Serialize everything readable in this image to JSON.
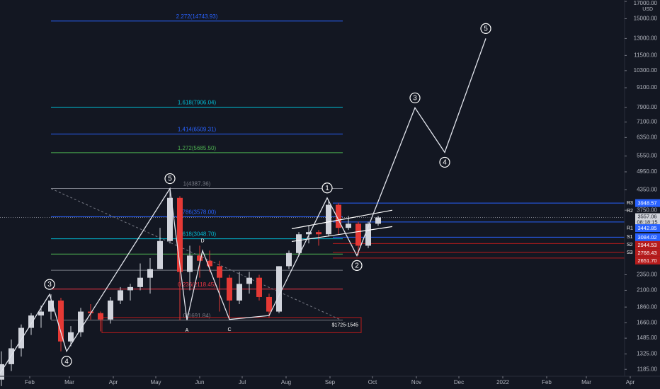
{
  "chart_data": {
    "type": "candlestick",
    "currency": "USD",
    "log_scale": true,
    "grid": false,
    "up_color": "#d1d4dc",
    "down_color": "#e53935",
    "xlim": [
      10,
      451
    ],
    "xticks": [
      {
        "value": 31,
        "label": "Feb"
      },
      {
        "value": 59,
        "label": "Mar"
      },
      {
        "value": 90,
        "label": "Apr"
      },
      {
        "value": 120,
        "label": "May"
      },
      {
        "value": 151,
        "label": "Jun"
      },
      {
        "value": 181,
        "label": "Jul"
      },
      {
        "value": 212,
        "label": "Aug"
      },
      {
        "value": 243,
        "label": "Sep"
      },
      {
        "value": 273,
        "label": "Oct"
      },
      {
        "value": 304,
        "label": "Nov"
      },
      {
        "value": 334,
        "label": "Dec"
      },
      {
        "value": 365,
        "label": "2022"
      },
      {
        "value": 396,
        "label": "Feb"
      },
      {
        "value": 424,
        "label": "Mar"
      },
      {
        "value": 455,
        "label": "Apr"
      }
    ],
    "ylim": [
      1127,
      17000
    ],
    "yticks": [
      {
        "value": 1185,
        "label": "1185.00"
      },
      {
        "value": 1325,
        "label": "1325.00"
      },
      {
        "value": 1485,
        "label": "1485.00"
      },
      {
        "value": 1660,
        "label": "1660.00"
      },
      {
        "value": 1860,
        "label": "1860.00"
      },
      {
        "value": 2100,
        "label": "2100.00"
      },
      {
        "value": 2350,
        "label": "2350.00"
      },
      {
        "value": 3750,
        "label": "3750.00"
      },
      {
        "value": 4350,
        "label": "4350.00"
      },
      {
        "value": 4950,
        "label": "4950.00"
      },
      {
        "value": 5550,
        "label": "5550.00"
      },
      {
        "value": 6350,
        "label": "6350.00"
      },
      {
        "value": 7100,
        "label": "7100.00"
      },
      {
        "value": 7900,
        "label": "7900.00"
      },
      {
        "value": 9100,
        "label": "9100.00"
      },
      {
        "value": 10300,
        "label": "10300.00"
      },
      {
        "value": 11500,
        "label": "11500.00"
      },
      {
        "value": 13000,
        "label": "13000.00"
      },
      {
        "value": 15000,
        "label": "15000.00"
      },
      {
        "value": 17000,
        "label": "17000.00"
      }
    ],
    "candles": {
      "x": [
        11,
        18,
        25,
        32,
        39,
        46,
        53,
        60,
        67,
        74,
        81,
        88,
        95,
        102,
        109,
        116,
        123,
        130,
        137,
        144,
        151,
        158,
        165,
        172,
        179,
        186,
        193,
        200,
        207,
        214,
        221,
        228,
        235,
        242,
        249,
        256,
        263,
        270,
        277
      ],
      "open": [
        1100,
        1230,
        1380,
        1600,
        1750,
        1800,
        1950,
        1450,
        1550,
        1800,
        1780,
        1700,
        1950,
        2100,
        2150,
        2300,
        2450,
        3000,
        4100,
        2400,
        2700,
        2600,
        2500,
        2300,
        1950,
        2200,
        2300,
        2000,
        1800,
        2500,
        2750,
        3150,
        3200,
        3150,
        3900,
        3300,
        3400,
        2900,
        3400
      ],
      "high": [
        1350,
        1470,
        1640,
        1780,
        1880,
        2040,
        1990,
        1620,
        1850,
        1900,
        1800,
        2000,
        2150,
        2200,
        2550,
        2650,
        3300,
        4387,
        4150,
        2900,
        2900,
        2800,
        2600,
        2350,
        2400,
        2400,
        2350,
        2050,
        2500,
        2800,
        3200,
        3350,
        3250,
        4020,
        3950,
        3600,
        3450,
        3450,
        3600
      ],
      "low": [
        1050,
        1170,
        1300,
        1520,
        1600,
        1700,
        1350,
        1400,
        1500,
        1700,
        1560,
        1650,
        1900,
        1950,
        2100,
        2050,
        2450,
        2950,
        1692,
        2100,
        2300,
        2400,
        1800,
        1700,
        1900,
        2050,
        1950,
        1720,
        1780,
        2450,
        2700,
        2950,
        2900,
        3100,
        3150,
        3250,
        2700,
        2850,
        3350
      ],
      "close": [
        1230,
        1380,
        1600,
        1750,
        1800,
        1950,
        1450,
        1550,
        1800,
        1780,
        1700,
        1950,
        2100,
        2150,
        2300,
        2450,
        3000,
        4100,
        2400,
        2700,
        2600,
        2500,
        2300,
        1950,
        2200,
        2300,
        2000,
        1800,
        2500,
        2750,
        3150,
        3200,
        3150,
        3900,
        3300,
        3400,
        2900,
        3400,
        3557
      ]
    },
    "fib_from": 46,
    "fib_to": 252,
    "fib_levels": [
      {
        "label": "2.272(14743.93)",
        "value": 14743.93,
        "color": "#2962ff"
      },
      {
        "label": "1.618(7906.04)",
        "value": 7906.04,
        "color": "#00bcd4"
      },
      {
        "label": "1.414(6509.31)",
        "value": 6509.31,
        "color": "#2962ff"
      },
      {
        "label": "1.272(5685.50)",
        "value": 5685.5,
        "color": "#4caf50"
      },
      {
        "label": "1(4387.36)",
        "value": 4387.36,
        "color": "#787b86"
      },
      {
        "label": "0.786(3578.00)",
        "value": 3578,
        "color": "#2962ff"
      },
      {
        "label": "0.618(3048.70)",
        "value": 3048.7,
        "color": "#00bcd4"
      },
      {
        "value": 2730,
        "color": "#4caf50"
      },
      {
        "value": 2428,
        "color": "#787b86"
      },
      {
        "label": "0.236(2118.45)",
        "value": 2118.45,
        "color": "#f23645"
      },
      {
        "label": "0(1691.84)",
        "value": 1691.84,
        "color": "#787b86"
      }
    ],
    "pivot_from": 245,
    "pivots": [
      {
        "name": "R3",
        "value": 3948.57,
        "color": "#2962ff"
      },
      {
        "name": "R2"
      },
      {
        "name": "R1",
        "value": 3442.85,
        "color": "#2962ff"
      },
      {
        "name": "S1",
        "value": 3084.02,
        "color": "#2962ff"
      },
      {
        "name": "S2",
        "value": 2944.53,
        "color": "#b71c1c"
      },
      {
        "name": "S3",
        "value": 2768.43,
        "color": "#b71c1c"
      },
      {
        "value": 2651.7,
        "value_label": "2651.70",
        "color": "#b71c1c"
      }
    ],
    "current_price": {
      "value": 3557.06,
      "countdown": "08:18:15"
    },
    "zone": {
      "x": [
        82,
        265
      ],
      "y": [
        1725,
        1545
      ],
      "label": "$1725-1545"
    },
    "trendline": {
      "x": [
        46,
        250
      ],
      "y": [
        4387,
        1700
      ]
    },
    "channel": [
      {
        "x": [
          216,
          287
        ],
        "y": [
          3280,
          3750
        ]
      },
      {
        "x": [
          216,
          287
        ],
        "y": [
          2990,
          3330
        ]
      }
    ],
    "waves": {
      "x": [
        10,
        45,
        57,
        130,
        142,
        153,
        172,
        200,
        241,
        262,
        303,
        324,
        353
      ],
      "y": [
        1150,
        2040,
        1350,
        4387,
        1692,
        2800,
        1700,
        1750,
        4100,
        2700,
        7870,
        5700,
        13000
      ],
      "labels": [
        null,
        "3",
        "4",
        "5",
        "A",
        "D",
        "C",
        null,
        "1",
        "2",
        "3",
        "4",
        "5"
      ]
    }
  }
}
